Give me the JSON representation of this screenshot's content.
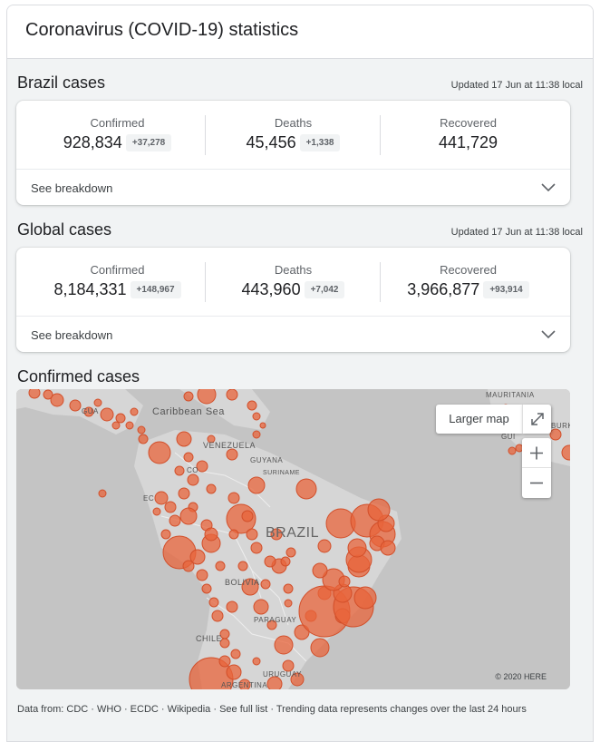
{
  "panel": {
    "title": "Coronavirus (COVID-19) statistics"
  },
  "brazil": {
    "title": "Brazil cases",
    "updated": "Updated 17 Jun at 11:38 local",
    "confirmed": {
      "label": "Confirmed",
      "value": "928,834",
      "delta": "+37,278"
    },
    "deaths": {
      "label": "Deaths",
      "value": "45,456",
      "delta": "+1,338"
    },
    "recovered": {
      "label": "Recovered",
      "value": "441,729"
    },
    "breakdown": "See breakdown"
  },
  "global": {
    "title": "Global cases",
    "updated": "Updated 17 Jun at 11:38 local",
    "confirmed": {
      "label": "Confirmed",
      "value": "8,184,331",
      "delta": "+148,967"
    },
    "deaths": {
      "label": "Deaths",
      "value": "443,960",
      "delta": "+7,042"
    },
    "recovered": {
      "label": "Recovered",
      "value": "3,966,877",
      "delta": "+93,914"
    },
    "breakdown": "See breakdown"
  },
  "map": {
    "title": "Confirmed cases",
    "larger_map": "Larger map",
    "copyright": "© 2020 HERE",
    "labels": {
      "caribbean": "Caribbean Sea",
      "venezuela": "VENEZUELA",
      "guyana": "GUYANA",
      "suriname": "SURINAME",
      "brazil": "BRAZIL",
      "bolivia": "BOLIVIA",
      "paraguay": "PARAGUAY",
      "chile": "CHILE",
      "uruguay": "URUGUAY",
      "mauritania": "MAURITANIA",
      "burkina": "BURK",
      "guatemala": "GUA",
      "guinea": "GUI",
      "ecuador": "EC",
      "colombia": "CO",
      "argentina": "ARGENTINA"
    },
    "colors": {
      "bubble": "#e8643b",
      "land": "#d6d6d6",
      "water": "#c4c4c4"
    },
    "icons": {
      "expand": "expand-icon",
      "zoom_in": "plus-icon",
      "zoom_out": "minus-icon"
    }
  },
  "footer": {
    "text": "Data from: CDC · WHO · ECDC · Wikipedia · See full list · Trending data represents changes over the last 24 hours"
  }
}
